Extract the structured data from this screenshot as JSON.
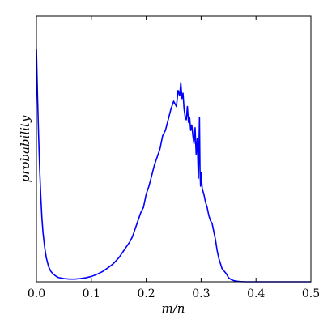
{
  "chart_data": {
    "type": "line",
    "title": "",
    "xlabel": "m/n",
    "ylabel": "probability",
    "xlim": [
      0.0,
      0.5
    ],
    "ylim": [
      0,
      1
    ],
    "xticks": [
      "0.0",
      "0.1",
      "0.2",
      "0.3",
      "0.4",
      "0.5"
    ],
    "xtick_values": [
      0.0,
      0.1,
      0.2,
      0.3,
      0.4,
      0.5
    ],
    "yticks": [],
    "grid": false,
    "legend": "none",
    "series": [
      {
        "color": "#0000ff",
        "x": [
          0.0,
          0.002,
          0.004,
          0.006,
          0.008,
          0.01,
          0.012,
          0.015,
          0.018,
          0.022,
          0.026,
          0.03,
          0.035,
          0.04,
          0.05,
          0.06,
          0.07,
          0.08,
          0.09,
          0.1,
          0.11,
          0.12,
          0.13,
          0.14,
          0.15,
          0.155,
          0.16,
          0.165,
          0.17,
          0.175,
          0.18,
          0.185,
          0.19,
          0.195,
          0.2,
          0.205,
          0.21,
          0.215,
          0.22,
          0.225,
          0.23,
          0.235,
          0.24,
          0.245,
          0.25,
          0.255,
          0.258,
          0.261,
          0.263,
          0.265,
          0.267,
          0.269,
          0.271,
          0.273,
          0.275,
          0.277,
          0.279,
          0.281,
          0.283,
          0.285,
          0.287,
          0.289,
          0.291,
          0.293,
          0.295,
          0.296,
          0.297,
          0.298,
          0.299,
          0.3,
          0.302,
          0.305,
          0.308,
          0.311,
          0.314,
          0.317,
          0.32,
          0.323,
          0.326,
          0.329,
          0.332,
          0.335,
          0.338,
          0.342,
          0.346,
          0.35,
          0.355,
          0.36,
          0.365,
          0.37,
          0.38,
          0.39,
          0.4,
          0.45,
          0.5
        ],
        "y": [
          0.875,
          0.7,
          0.55,
          0.42,
          0.32,
          0.24,
          0.185,
          0.13,
          0.09,
          0.058,
          0.04,
          0.03,
          0.022,
          0.016,
          0.012,
          0.01,
          0.01,
          0.012,
          0.015,
          0.02,
          0.028,
          0.038,
          0.052,
          0.068,
          0.09,
          0.105,
          0.12,
          0.135,
          0.15,
          0.17,
          0.2,
          0.23,
          0.26,
          0.28,
          0.33,
          0.36,
          0.4,
          0.44,
          0.47,
          0.5,
          0.55,
          0.57,
          0.61,
          0.65,
          0.68,
          0.66,
          0.72,
          0.7,
          0.75,
          0.69,
          0.71,
          0.65,
          0.62,
          0.61,
          0.66,
          0.6,
          0.62,
          0.57,
          0.59,
          0.55,
          0.52,
          0.58,
          0.48,
          0.54,
          0.39,
          0.5,
          0.62,
          0.42,
          0.36,
          0.41,
          0.35,
          0.33,
          0.3,
          0.28,
          0.25,
          0.23,
          0.22,
          0.19,
          0.16,
          0.12,
          0.09,
          0.07,
          0.05,
          0.04,
          0.03,
          0.015,
          0.008,
          0.004,
          0.002,
          0.001,
          0.0,
          0.0,
          0.0,
          0.0,
          0.0
        ]
      }
    ]
  }
}
